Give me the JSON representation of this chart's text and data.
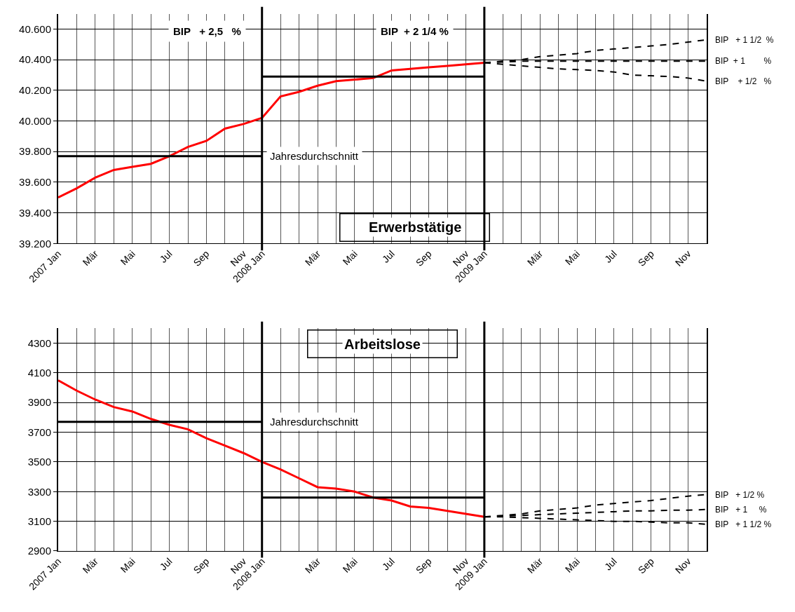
{
  "chart_data": [
    {
      "type": "line",
      "title": "Erwerbstätige",
      "categories": [
        "2007 Jan",
        null,
        "Mär",
        null,
        "Mai",
        null,
        "Jul",
        null,
        "Sep",
        null,
        "Nov",
        "2008 Jan",
        null,
        null,
        "Mär",
        null,
        "Mai",
        null,
        "Jul",
        null,
        "Sep",
        null,
        "Nov",
        "2009 Jan",
        null,
        null,
        "Mär",
        null,
        "Mai",
        null,
        "Jul",
        null,
        "Sep",
        null,
        "Nov",
        null
      ],
      "series": [
        {
          "color": "#ff0000",
          "values": [
            39500,
            39560,
            39630,
            39680,
            39700,
            39720,
            39770,
            39830,
            39870,
            39950,
            39980,
            40020,
            40160,
            40190,
            40230,
            40260,
            40270,
            40280,
            40330,
            40340,
            40350,
            40360,
            40370,
            40380,
            null,
            null,
            null,
            null,
            null,
            null,
            null,
            null,
            null,
            null,
            null,
            null
          ]
        },
        {
          "color": "#000000",
          "values": [
            39770,
            39770,
            39770,
            39770,
            39770,
            39770,
            39770,
            39770,
            39770,
            39770,
            39770,
            39770,
            null,
            null,
            null,
            null,
            null,
            null,
            null,
            null,
            null,
            null,
            null,
            null,
            null,
            null,
            null,
            null,
            null,
            null,
            null,
            null,
            null,
            null,
            null,
            null
          ]
        },
        {
          "color": "#000000",
          "values": [
            null,
            null,
            null,
            null,
            null,
            null,
            null,
            null,
            null,
            null,
            null,
            40290,
            40290,
            40290,
            40290,
            40290,
            40290,
            40290,
            40290,
            40290,
            40290,
            40290,
            40290,
            40290,
            null,
            null,
            null,
            null,
            null,
            null,
            null,
            null,
            null,
            null,
            null,
            null
          ]
        },
        {
          "name": "BIP   + 1 1/2  %",
          "color": "#000000",
          "line_style": "dashed",
          "values": [
            null,
            null,
            null,
            null,
            null,
            null,
            null,
            null,
            null,
            null,
            null,
            null,
            null,
            null,
            null,
            null,
            null,
            null,
            null,
            null,
            null,
            null,
            null,
            40380,
            40390,
            40400,
            40420,
            40430,
            40440,
            40460,
            40470,
            40480,
            40490,
            40500,
            40515,
            40530
          ]
        },
        {
          "name": "BIP  + 1        %",
          "color": "#000000",
          "line_style": "dashed",
          "values": [
            null,
            null,
            null,
            null,
            null,
            null,
            null,
            null,
            null,
            null,
            null,
            null,
            null,
            null,
            null,
            null,
            null,
            null,
            null,
            null,
            null,
            null,
            null,
            40380,
            40385,
            40390,
            40390,
            40390,
            40390,
            40390,
            40390,
            40390,
            40390,
            40390,
            40390,
            40390
          ]
        },
        {
          "name": "BIP    + 1/2   %",
          "color": "#000000",
          "line_style": "dashed",
          "values": [
            null,
            null,
            null,
            null,
            null,
            null,
            null,
            null,
            null,
            null,
            null,
            null,
            null,
            null,
            null,
            null,
            null,
            null,
            null,
            null,
            null,
            null,
            null,
            40380,
            40370,
            40360,
            40350,
            40340,
            40335,
            40330,
            40320,
            40300,
            40295,
            40290,
            40280,
            40260
          ]
        }
      ],
      "ylim": [
        39200,
        40700
      ],
      "yticks": [
        {
          "value": 39200,
          "label": "39.200"
        },
        {
          "value": 39400,
          "label": "39.400"
        },
        {
          "value": 39600,
          "label": "39.600"
        },
        {
          "value": 39800,
          "label": "39.800"
        },
        {
          "value": 40000,
          "label": "40.000"
        },
        {
          "value": 40200,
          "label": "40.200"
        },
        {
          "value": 40400,
          "label": "40.400"
        },
        {
          "value": 40600,
          "label": "40.600"
        }
      ],
      "ref_lines": [
        {
          "axis": "x",
          "value": "2008 Jan",
          "color": "#000000"
        },
        {
          "axis": "x",
          "value": "2009 Jan",
          "color": "#000000"
        }
      ],
      "annotations": [
        "BIP   + 2,5   %",
        "BIP  + 2 1/4 %",
        {
          "text": "Jahresdurchschnitt",
          "x": "2008 Jan",
          "y": 39770
        }
      ],
      "grid": true
    },
    {
      "type": "line",
      "title": "Arbeitslose",
      "categories": [
        "2007 Jan",
        null,
        "Mär",
        null,
        "Mai",
        null,
        "Jul",
        null,
        "Sep",
        null,
        "Nov",
        "2008 Jan",
        null,
        null,
        "Mär",
        null,
        "Mai",
        null,
        "Jul",
        null,
        "Sep",
        null,
        "Nov",
        "2009 Jan",
        null,
        null,
        "Mär",
        null,
        "Mai",
        null,
        "Jul",
        null,
        "Sep",
        null,
        "Nov",
        null
      ],
      "series": [
        {
          "color": "#ff0000",
          "values": [
            4050,
            3980,
            3920,
            3870,
            3840,
            3790,
            3750,
            3720,
            3660,
            3610,
            3560,
            3500,
            3450,
            3390,
            3330,
            3320,
            3300,
            3260,
            3240,
            3200,
            3190,
            3170,
            3150,
            3130,
            null,
            null,
            null,
            null,
            null,
            null,
            null,
            null,
            null,
            null,
            null,
            null
          ]
        },
        {
          "color": "#000000",
          "values": [
            3770,
            3770,
            3770,
            3770,
            3770,
            3770,
            3770,
            3770,
            3770,
            3770,
            3770,
            3770,
            null,
            null,
            null,
            null,
            null,
            null,
            null,
            null,
            null,
            null,
            null,
            null,
            null,
            null,
            null,
            null,
            null,
            null,
            null,
            null,
            null,
            null,
            null,
            null
          ]
        },
        {
          "color": "#000000",
          "values": [
            null,
            null,
            null,
            null,
            null,
            null,
            null,
            null,
            null,
            null,
            null,
            3260,
            3260,
            3260,
            3260,
            3260,
            3260,
            3260,
            3260,
            3260,
            3260,
            3260,
            3260,
            3260,
            null,
            null,
            null,
            null,
            null,
            null,
            null,
            null,
            null,
            null,
            null,
            null
          ]
        },
        {
          "name": "BIP   + 1/2 %",
          "color": "#000000",
          "line_style": "dashed",
          "values": [
            null,
            null,
            null,
            null,
            null,
            null,
            null,
            null,
            null,
            null,
            null,
            null,
            null,
            null,
            null,
            null,
            null,
            null,
            null,
            null,
            null,
            null,
            null,
            3130,
            3140,
            3150,
            3170,
            3180,
            3190,
            3210,
            3220,
            3230,
            3240,
            3255,
            3270,
            3280
          ]
        },
        {
          "name": "BIP   + 1     %",
          "color": "#000000",
          "line_style": "dashed",
          "values": [
            null,
            null,
            null,
            null,
            null,
            null,
            null,
            null,
            null,
            null,
            null,
            null,
            null,
            null,
            null,
            null,
            null,
            null,
            null,
            null,
            null,
            null,
            null,
            3130,
            3135,
            3140,
            3145,
            3150,
            3155,
            3160,
            3165,
            3170,
            3170,
            3175,
            3175,
            3180
          ]
        },
        {
          "name": "BIP   + 1 1/2 %",
          "color": "#000000",
          "line_style": "dashed",
          "values": [
            null,
            null,
            null,
            null,
            null,
            null,
            null,
            null,
            null,
            null,
            null,
            null,
            null,
            null,
            null,
            null,
            null,
            null,
            null,
            null,
            null,
            null,
            null,
            3130,
            3130,
            3125,
            3120,
            3115,
            3110,
            3105,
            3100,
            3100,
            3095,
            3090,
            3090,
            3080
          ]
        }
      ],
      "ylim": [
        2900,
        4400
      ],
      "yticks": [
        2900,
        3100,
        3300,
        3500,
        3700,
        3900,
        4100,
        4300
      ],
      "ref_lines": [
        {
          "axis": "x",
          "value": "2008 Jan",
          "color": "#000000"
        },
        {
          "axis": "x",
          "value": "2009 Jan",
          "color": "#000000"
        }
      ],
      "annotations": [
        {
          "text": "Jahresdurchschnitt",
          "x": "2008 Jan",
          "y": 3770
        }
      ],
      "grid": true
    }
  ]
}
